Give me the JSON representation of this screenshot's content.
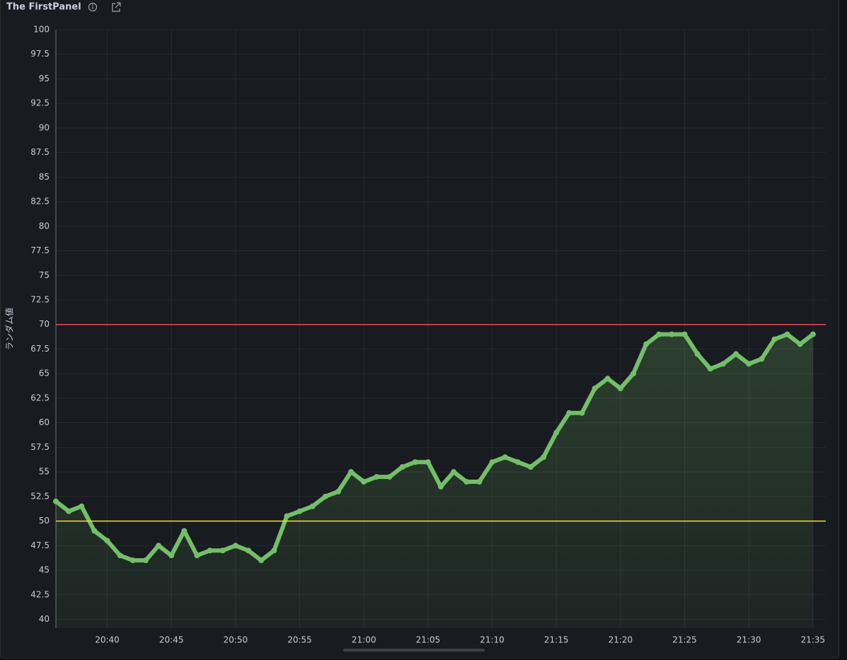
{
  "chart_data": {
    "type": "line",
    "title": "The FirstPanel",
    "ylabel": "ランダム値",
    "x": [
      "20:36",
      "20:37",
      "20:38",
      "20:39",
      "20:40",
      "20:41",
      "20:42",
      "20:43",
      "20:44",
      "20:45",
      "20:46",
      "20:47",
      "20:48",
      "20:49",
      "20:50",
      "20:51",
      "20:52",
      "20:53",
      "20:54",
      "20:55",
      "20:56",
      "20:57",
      "20:58",
      "20:59",
      "21:00",
      "21:01",
      "21:02",
      "21:03",
      "21:04",
      "21:05",
      "21:06",
      "21:07",
      "21:08",
      "21:09",
      "21:10",
      "21:11",
      "21:12",
      "21:13",
      "21:14",
      "21:15",
      "21:16",
      "21:17",
      "21:18",
      "21:19",
      "21:20",
      "21:21",
      "21:22",
      "21:23",
      "21:24",
      "21:25",
      "21:26",
      "21:27",
      "21:28",
      "21:29",
      "21:30",
      "21:31",
      "21:32",
      "21:33",
      "21:34",
      "21:35"
    ],
    "series": [
      {
        "color": "#73bf69",
        "values": [
          52,
          51,
          51.5,
          49,
          48,
          46.5,
          46,
          46,
          47.5,
          46.5,
          49,
          46.5,
          47,
          47,
          47.5,
          47,
          46,
          47,
          50.5,
          51,
          51.5,
          52.5,
          53,
          55,
          54,
          54.5,
          54.5,
          55.5,
          56,
          56,
          53.5,
          55,
          54,
          54,
          56,
          56.5,
          56,
          55.5,
          56.5,
          59,
          61,
          61,
          63.5,
          64.5,
          63.5,
          65,
          68,
          69,
          69,
          69,
          67,
          65.5,
          66,
          67,
          66,
          66.5,
          68.5,
          69,
          68,
          69
        ]
      }
    ],
    "thresholds": [
      {
        "value": 70,
        "color": "#f2495c"
      },
      {
        "value": 50,
        "color": "#fade2a"
      }
    ],
    "xlim": [
      "20:36",
      "21:36"
    ],
    "xticks": [
      "20:40",
      "20:45",
      "20:50",
      "20:55",
      "21:00",
      "21:05",
      "21:10",
      "21:15",
      "21:20",
      "21:25",
      "21:30",
      "21:35"
    ],
    "ylim": [
      39.1,
      100
    ],
    "yticks": [
      40,
      42.5,
      45,
      47.5,
      50,
      52.5,
      55,
      57.5,
      60,
      62.5,
      65,
      67.5,
      70,
      72.5,
      75,
      77.5,
      80,
      82.5,
      85,
      87.5,
      90,
      92.5,
      95,
      97.5,
      100
    ],
    "grid": true
  }
}
